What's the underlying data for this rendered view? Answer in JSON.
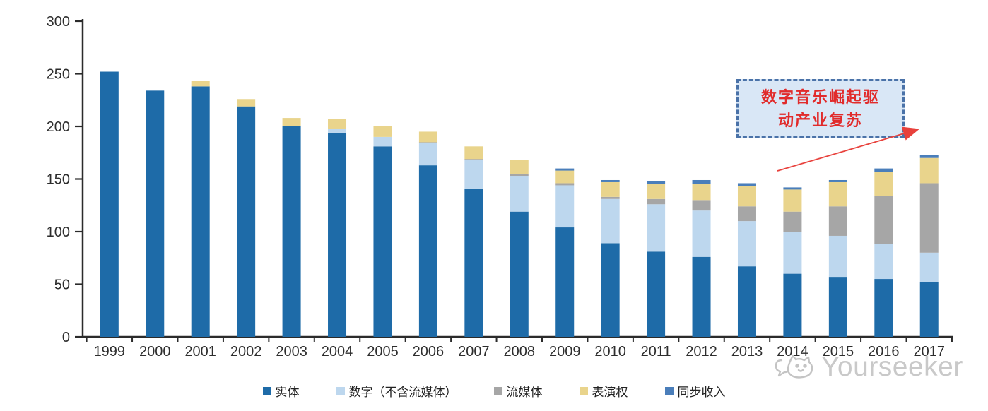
{
  "chart_data": {
    "type": "bar",
    "stacked": true,
    "x": [
      "1999",
      "2000",
      "2001",
      "2002",
      "2003",
      "2004",
      "2005",
      "2006",
      "2007",
      "2008",
      "2009",
      "2010",
      "2011",
      "2012",
      "2013",
      "2014",
      "2015",
      "2016",
      "2017"
    ],
    "series": [
      {
        "name": "实体",
        "color": "#1e6ba8",
        "values": [
          252,
          234,
          238,
          219,
          200,
          194,
          181,
          163,
          141,
          119,
          104,
          89,
          81,
          76,
          67,
          60,
          57,
          55,
          52
        ]
      },
      {
        "name": "数字（不含流媒体）",
        "color": "#bdd7ee",
        "values": [
          0,
          0,
          0,
          0,
          0,
          4,
          9,
          21,
          27,
          34,
          40,
          42,
          45,
          44,
          43,
          40,
          39,
          33,
          28
        ]
      },
      {
        "name": "流媒体",
        "color": "#a6a6a6",
        "values": [
          0,
          0,
          0,
          0,
          0,
          0,
          0,
          1,
          1,
          2,
          2,
          2,
          5,
          10,
          14,
          19,
          28,
          46,
          66
        ]
      },
      {
        "name": "表演权",
        "color": "#e9d48c",
        "values": [
          0,
          0,
          5,
          7,
          8,
          9,
          10,
          10,
          12,
          13,
          12,
          14,
          14,
          15,
          19,
          21,
          23,
          23,
          24
        ]
      },
      {
        "name": "同步收入",
        "color": "#4a7eba",
        "values": [
          0,
          0,
          0,
          0,
          0,
          0,
          0,
          0,
          0,
          0,
          2,
          2,
          3,
          4,
          3,
          2,
          2,
          3,
          3
        ]
      }
    ],
    "title": "",
    "xlabel": "",
    "ylabel": "",
    "ylim": [
      0,
      300
    ],
    "y_ticks": [
      0,
      50,
      100,
      150,
      200,
      250,
      300
    ],
    "grid": false,
    "legend_position": "bottom",
    "axis_color": "#2b2b2b"
  },
  "annotation": {
    "line1": "数字音乐崛起驱",
    "line2": "动产业复苏",
    "text_color": "#e12b2b",
    "box_fill": "#d9e7f6",
    "border_color": "#4a72a8",
    "arrow_color": "#e8413c"
  },
  "watermark": {
    "text": "Yourseeker",
    "icon": "chat-bubble-face-logo",
    "color": "#c9c9c9"
  }
}
